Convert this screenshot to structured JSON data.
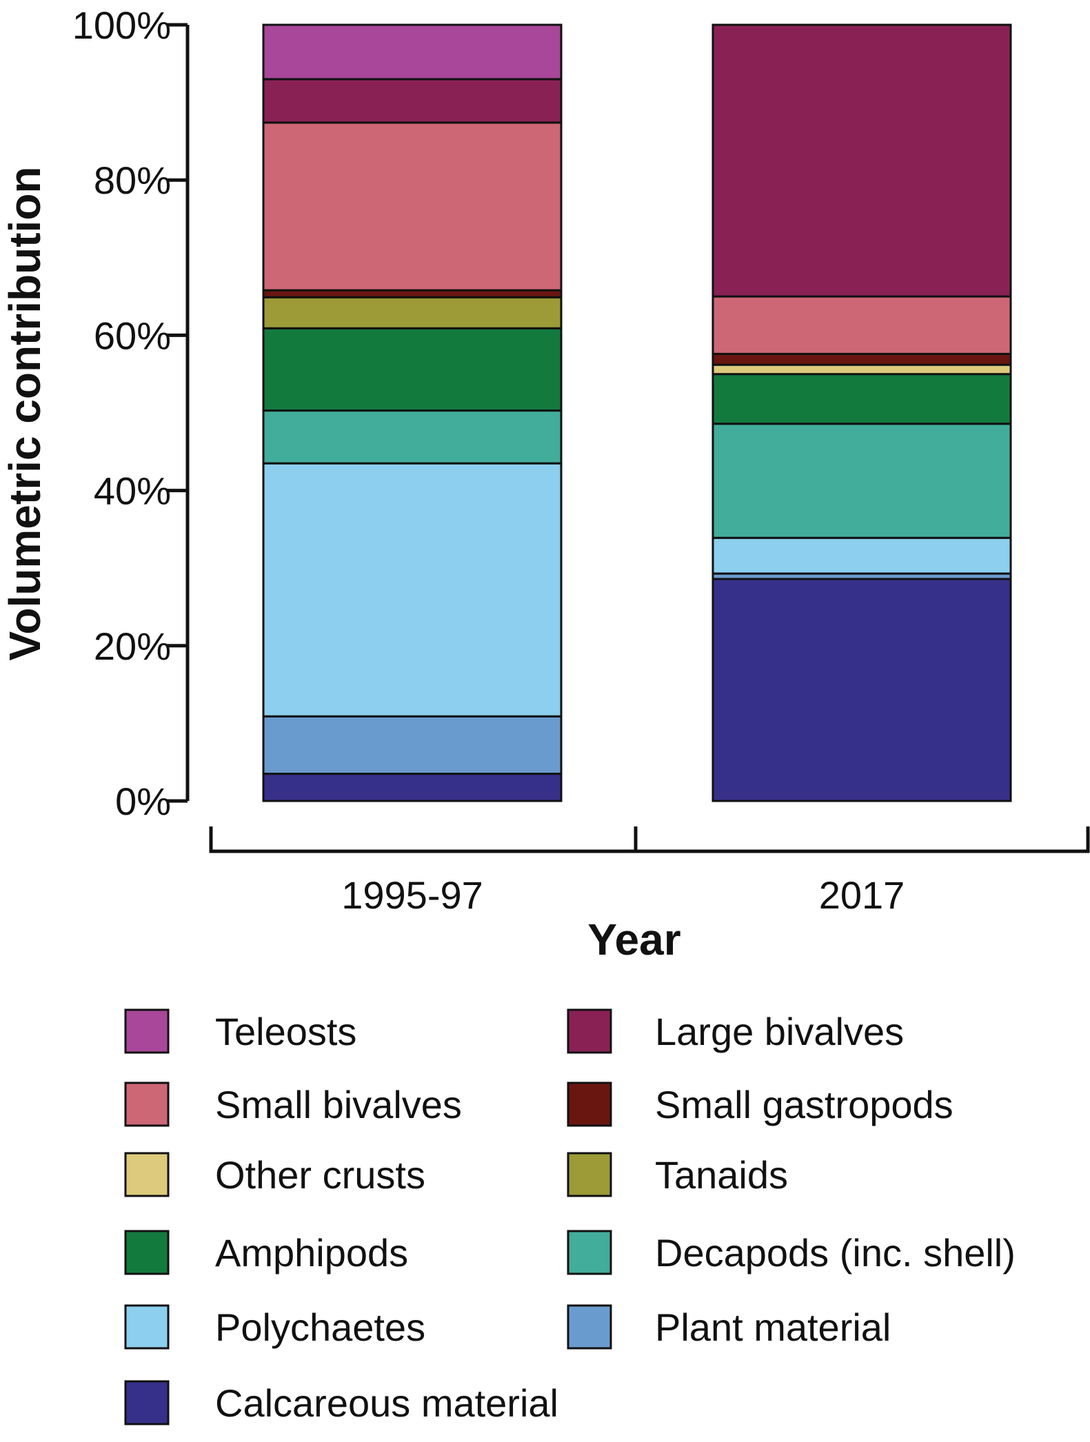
{
  "chart_data": {
    "type": "bar",
    "stacked": true,
    "categories": [
      "1995-97",
      "2017"
    ],
    "xlabel": "Year",
    "ylabel": "Volumetric contribution",
    "ylim": [
      0,
      100
    ],
    "yticks": [
      0,
      20,
      40,
      60,
      80,
      100
    ],
    "ytick_labels": [
      "0%",
      "20%",
      "40%",
      "60%",
      "80%",
      "100%"
    ],
    "series": [
      {
        "name": "Calcareous material",
        "color": "#37308a",
        "values": [
          3.5,
          28.6
        ]
      },
      {
        "name": "Plant material",
        "color": "#6a9bcf",
        "values": [
          7.4,
          0.7
        ]
      },
      {
        "name": "Polychaetes",
        "color": "#8ccfee",
        "values": [
          32.6,
          4.6
        ]
      },
      {
        "name": "Decapods (inc. shell)",
        "color": "#42ad9b",
        "values": [
          6.8,
          14.7
        ]
      },
      {
        "name": "Amphipods",
        "color": "#137a3e",
        "values": [
          10.6,
          6.4
        ]
      },
      {
        "name": "Tanaids",
        "color": "#9c9b37",
        "values": [
          4.0,
          0.0
        ]
      },
      {
        "name": "Other crusts",
        "color": "#ddca7c",
        "values": [
          0.0,
          1.2
        ]
      },
      {
        "name": "Small gastropods",
        "color": "#6a1610",
        "values": [
          0.9,
          1.4
        ]
      },
      {
        "name": "Small bivalves",
        "color": "#cd6776",
        "values": [
          21.6,
          7.4
        ]
      },
      {
        "name": "Large bivalves",
        "color": "#8a2155",
        "values": [
          5.6,
          35.0
        ]
      },
      {
        "name": "Teleosts",
        "color": "#a9479a",
        "values": [
          7.0,
          0.0
        ]
      }
    ],
    "legend": {
      "position": "bottom",
      "items_left": [
        "Teleosts",
        "Small bivalves",
        "Other crusts",
        "Amphipods",
        "Polychaetes",
        "Calcareous material"
      ],
      "items_right": [
        "Large bivalves",
        "Small gastropods",
        "Tanaids",
        "Decapods (inc. shell)",
        "Plant material"
      ]
    }
  }
}
